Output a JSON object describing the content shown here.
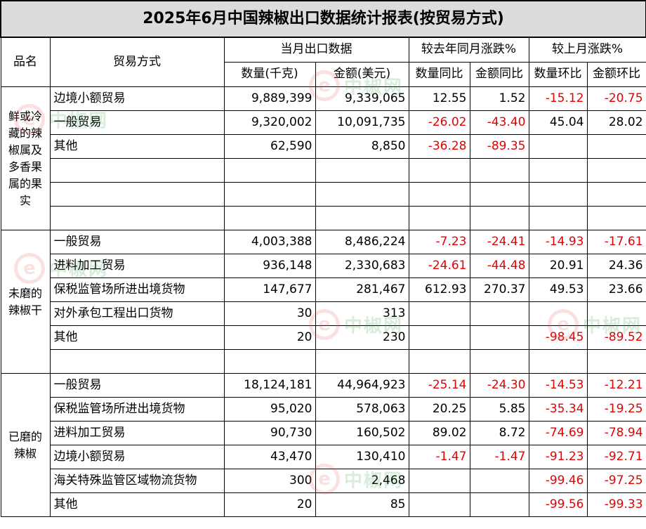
{
  "title": "2025年6月中国辣椒出口数据统计报表(按贸易方式)",
  "headers": {
    "product": "品名",
    "mode": "贸易方式",
    "current": "当月出口数据",
    "yoy": "较去年同月涨跌%",
    "mom": "较上月涨跌%",
    "qty": "数量(千克)",
    "amt": "金额(美元)",
    "qty_yoy": "数量同比",
    "amt_yoy": "金额同比",
    "qty_mom": "数量环比",
    "amt_mom": "金额环比"
  },
  "groups": [
    {
      "name": "鲜或冷藏的辣椒属及多香果属的果实",
      "rows": [
        {
          "mode": "边境小额贸易",
          "qty": "9,889,399",
          "amt": "9,339,065",
          "qty_yoy": "12.55",
          "amt_yoy": "1.52",
          "qty_mom": "-15.12",
          "amt_mom": "-20.75"
        },
        {
          "mode": "一般贸易",
          "qty": "9,320,002",
          "amt": "10,091,735",
          "qty_yoy": "-26.02",
          "amt_yoy": "-43.40",
          "qty_mom": "45.04",
          "amt_mom": "28.02"
        },
        {
          "mode": "其他",
          "qty": "62,590",
          "amt": "8,850",
          "qty_yoy": "-36.28",
          "amt_yoy": "-89.35",
          "qty_mom": "",
          "amt_mom": ""
        }
      ]
    },
    {
      "name": "未磨的辣椒干",
      "rows": [
        {
          "mode": "一般贸易",
          "qty": "4,003,388",
          "amt": "8,486,224",
          "qty_yoy": "-7.23",
          "amt_yoy": "-24.41",
          "qty_mom": "-14.93",
          "amt_mom": "-17.61"
        },
        {
          "mode": "进料加工贸易",
          "qty": "936,148",
          "amt": "2,330,683",
          "qty_yoy": "-24.61",
          "amt_yoy": "-44.48",
          "qty_mom": "20.91",
          "amt_mom": "24.36"
        },
        {
          "mode": "保税监管场所进出境货物",
          "qty": "147,677",
          "amt": "281,467",
          "qty_yoy": "612.93",
          "amt_yoy": "270.37",
          "qty_mom": "49.53",
          "amt_mom": "23.66"
        },
        {
          "mode": "对外承包工程出口货物",
          "qty": "30",
          "amt": "313",
          "qty_yoy": "",
          "amt_yoy": "",
          "qty_mom": "",
          "amt_mom": ""
        },
        {
          "mode": "其他",
          "qty": "20",
          "amt": "230",
          "qty_yoy": "",
          "amt_yoy": "",
          "qty_mom": "-98.45",
          "amt_mom": "-89.52"
        }
      ]
    },
    {
      "name": "已磨的辣椒",
      "rows": [
        {
          "mode": "一般贸易",
          "qty": "18,124,181",
          "amt": "44,964,923",
          "qty_yoy": "-25.14",
          "amt_yoy": "-24.30",
          "qty_mom": "-14.53",
          "amt_mom": "-12.21"
        },
        {
          "mode": "保税监管场所进出境货物",
          "qty": "95,020",
          "amt": "578,063",
          "qty_yoy": "20.25",
          "amt_yoy": "5.85",
          "qty_mom": "-35.34",
          "amt_mom": "-19.25"
        },
        {
          "mode": "进料加工贸易",
          "qty": "90,730",
          "amt": "160,502",
          "qty_yoy": "89.02",
          "amt_yoy": "8.72",
          "qty_mom": "-74.69",
          "amt_mom": "-78.94"
        },
        {
          "mode": "边境小额贸易",
          "qty": "43,470",
          "amt": "130,410",
          "qty_yoy": "-1.47",
          "amt_yoy": "-1.47",
          "qty_mom": "-91.23",
          "amt_mom": "-92.71"
        },
        {
          "mode": "海关特殊监管区域物流货物",
          "qty": "300",
          "amt": "2,468",
          "qty_yoy": "",
          "amt_yoy": "",
          "qty_mom": "-99.46",
          "amt_mom": "-97.25"
        },
        {
          "mode": "其他",
          "qty": "20",
          "amt": "85",
          "qty_yoy": "",
          "amt_yoy": "",
          "qty_mom": "-99.56",
          "amt_mom": "-99.33"
        }
      ]
    }
  ],
  "watermark": {
    "text": "中椒网",
    "icon": "e-logo-icon",
    "colors": {
      "green": "#2e9a3c",
      "red": "#e65a5a"
    }
  },
  "colors": {
    "negative": "#e60000",
    "title_bg": "#dcdcdc"
  }
}
